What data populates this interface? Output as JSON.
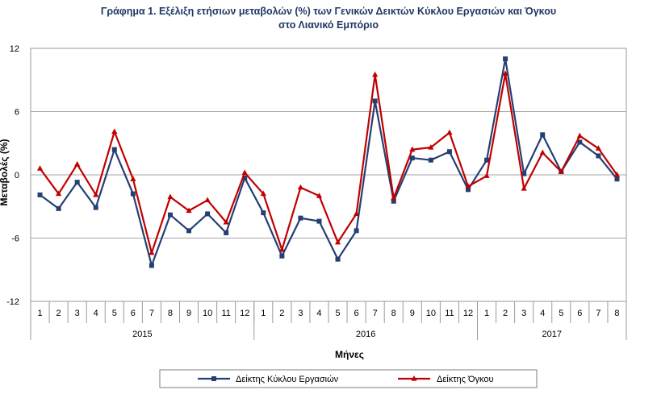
{
  "chart_data": {
    "type": "line",
    "title_line1": "Γράφημα 1. Εξέλιξη ετήσιων μεταβολών (%) των Γενικών Δεικτών Κύκλου Εργασιών και Όγκου",
    "title_line2": "στο Λιανικό Εμπόριο",
    "xlabel": "Μήνες",
    "ylabel": "Μεταβολές  (%)",
    "ylim": [
      -12,
      12
    ],
    "yticks": [
      "12",
      "6",
      "0",
      "-6",
      "-12"
    ],
    "grid": true,
    "legend_position": "bottom",
    "categories": [
      "1",
      "2",
      "3",
      "4",
      "5",
      "6",
      "7",
      "8",
      "9",
      "10",
      "11",
      "12",
      "1",
      "2",
      "3",
      "4",
      "5",
      "6",
      "7",
      "8",
      "9",
      "10",
      "11",
      "12",
      "1",
      "2",
      "3",
      "4",
      "5",
      "6",
      "7",
      "8"
    ],
    "years": [
      {
        "label": "2015",
        "months": 12
      },
      {
        "label": "2016",
        "months": 12
      },
      {
        "label": "2017",
        "months": 8
      }
    ],
    "series": [
      {
        "name": "Δείκτης Κύκλου Εργασιών",
        "color": "#243f73",
        "marker": "square",
        "values": [
          -1.9,
          -3.2,
          -0.7,
          -3.1,
          2.4,
          -1.8,
          -8.6,
          -3.8,
          -5.3,
          -3.7,
          -5.5,
          -0.3,
          -3.6,
          -7.7,
          -4.1,
          -4.4,
          -8.0,
          -5.3,
          7.0,
          -2.5,
          1.6,
          1.4,
          2.2,
          -1.4,
          1.4,
          11.0,
          0.1,
          3.8,
          0.3,
          3.1,
          1.8,
          -0.4
        ]
      },
      {
        "name": "Δείκτης Όγκου",
        "color": "#c00000",
        "marker": "triangle",
        "values": [
          0.6,
          -1.8,
          1.0,
          -1.9,
          4.1,
          -0.4,
          -7.4,
          -2.1,
          -3.4,
          -2.4,
          -4.5,
          0.2,
          -1.8,
          -7.1,
          -1.2,
          -2.0,
          -6.4,
          -3.7,
          9.5,
          -2.2,
          2.4,
          2.6,
          4.0,
          -1.1,
          -0.1,
          9.6,
          -1.3,
          2.1,
          0.3,
          3.7,
          2.5,
          0.0
        ]
      }
    ]
  }
}
